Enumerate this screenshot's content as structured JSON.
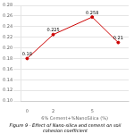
{
  "chart_data": {
    "type": "line",
    "title": "Figure 9 - Effect of Nano-silica and cement on soil\ncohesion coefficient",
    "xlabel": "6% Cement+%NanoSilica (%)",
    "x": [
      0,
      2,
      5,
      7
    ],
    "values": [
      0.18,
      0.225,
      0.258,
      0.21
    ],
    "color": "#cc0000",
    "marker": "circle",
    "line_style": "solid",
    "xlim": [
      -0.5,
      7.8
    ],
    "xticks": [
      0,
      2,
      5
    ],
    "ylim": [
      0.1,
      0.28
    ],
    "yticks": [
      {
        "value": 0.1,
        "label": "0.10"
      },
      0.12,
      0.14,
      0.16,
      0.18,
      {
        "value": 0.2,
        "label": "0.20"
      },
      0.22,
      0.24,
      0.26,
      0.28
    ],
    "grid": "y",
    "data_labels": true
  }
}
